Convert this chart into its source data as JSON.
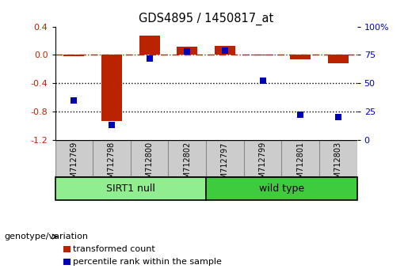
{
  "title": "GDS4895 / 1450817_at",
  "samples": [
    "GSM712769",
    "GSM712798",
    "GSM712800",
    "GSM712802",
    "GSM712797",
    "GSM712799",
    "GSM712801",
    "GSM712803"
  ],
  "red_values": [
    -0.02,
    -0.93,
    0.27,
    0.12,
    0.13,
    -0.01,
    -0.06,
    -0.12
  ],
  "blue_values_pct": [
    35,
    13,
    72,
    78,
    79,
    52,
    22,
    20
  ],
  "groups": [
    {
      "label": "SIRT1 null",
      "start": 0,
      "end": 4,
      "color": "#90EE90"
    },
    {
      "label": "wild type",
      "start": 4,
      "end": 8,
      "color": "#3ECC3E"
    }
  ],
  "ylim_left": [
    -1.2,
    0.4
  ],
  "ylim_right": [
    0,
    100
  ],
  "yticks_left": [
    0.4,
    0.0,
    -0.4,
    -0.8,
    -1.2
  ],
  "yticks_right": [
    100,
    75,
    50,
    25,
    0
  ],
  "red_color": "#BB2200",
  "blue_color": "#0000BB",
  "dashed_line_color": "#BB2200",
  "dotted_line_color": "#000000",
  "bar_width": 0.55,
  "blue_marker_size": 6,
  "legend_red_label": "transformed count",
  "legend_blue_label": "percentile rank within the sample",
  "genotype_label": "genotype/variation",
  "background_color": "#ffffff",
  "xtick_bg": "#cccccc",
  "xtick_border": "#888888",
  "group_border": "#000000"
}
